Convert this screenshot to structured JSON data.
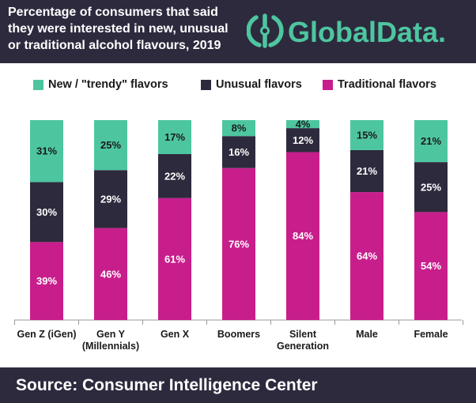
{
  "header": {
    "title_lines": [
      "Percentage of consumers that said",
      "they were interested in new, unusual",
      "or traditional alcohol flavours, 2019"
    ],
    "logo_text": "GlobalData."
  },
  "footer": {
    "source": "Source:  Consumer Intelligence Center"
  },
  "colors": {
    "header_bg": "#2e2a3e",
    "new_trendy": "#4dc6a0",
    "unusual": "#2e2a3e",
    "traditional": "#c81e8c",
    "logo_accent": "#4dc6a0"
  },
  "chart_data": {
    "type": "bar",
    "stacked": true,
    "categories": [
      [
        "Gen Z (iGen)"
      ],
      [
        "Gen Y",
        "(Millennials)"
      ],
      [
        "Gen X"
      ],
      [
        "Boomers"
      ],
      [
        "Silent",
        "Generation"
      ],
      [
        "Male"
      ],
      [
        "Female"
      ]
    ],
    "series": [
      {
        "name": "Traditional flavors",
        "values": [
          39,
          46,
          61,
          76,
          84,
          64,
          54
        ],
        "labels": [
          "39%",
          "46%",
          "61%",
          "76%",
          "84%",
          "64%",
          "54%"
        ],
        "color": "#c81e8c"
      },
      {
        "name": "Unusual flavors",
        "values": [
          30,
          29,
          22,
          16,
          12,
          21,
          25
        ],
        "labels": [
          "30%",
          "29%",
          "22%",
          "16%",
          "12%",
          "21%",
          "25%"
        ],
        "color": "#2e2a3e"
      },
      {
        "name": "New / \"trendy\" flavors",
        "values": [
          31,
          25,
          17,
          8,
          4,
          15,
          21
        ],
        "labels": [
          "31%",
          "25%",
          "17%",
          "8%",
          "4%",
          "15%",
          "21%"
        ],
        "color": "#4dc6a0"
      }
    ],
    "legend_order": [
      2,
      1,
      0
    ],
    "legend_position": "top",
    "ylim": [
      0,
      100
    ],
    "grid": false,
    "xlabel": "",
    "ylabel": ""
  }
}
